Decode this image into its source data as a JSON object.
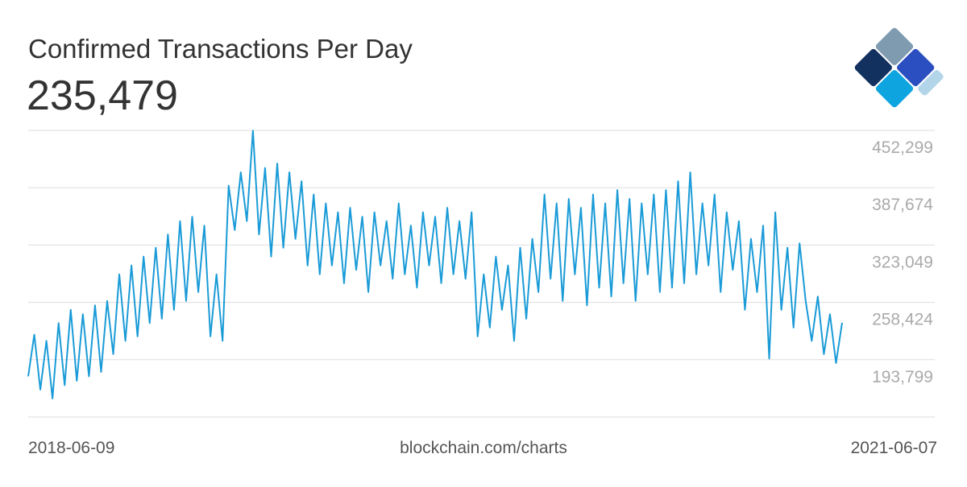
{
  "chart_data": {
    "type": "line",
    "title": "Confirmed Transactions Per Day",
    "subtitle": "235,479",
    "source": "blockchain.com/charts",
    "color": "#1a9bd7",
    "grid": true,
    "categories": [
      "2018-06-09",
      null,
      null,
      null,
      null,
      null,
      null,
      null,
      null,
      null,
      null,
      null,
      null,
      null,
      null,
      null,
      null,
      null,
      null,
      null,
      null,
      null,
      null,
      null,
      null,
      null,
      null,
      null,
      null,
      null,
      null,
      null,
      null,
      null,
      null,
      null,
      null,
      null,
      null,
      null,
      null,
      null,
      null,
      null,
      null,
      null,
      null,
      null,
      null,
      null,
      null,
      null,
      null,
      null,
      null,
      null,
      null,
      null,
      null,
      null,
      null,
      null,
      null,
      null,
      null,
      null,
      null,
      null,
      null,
      null,
      null,
      null,
      null,
      null,
      null,
      null,
      null,
      null,
      null,
      null,
      null,
      null,
      null,
      null,
      null,
      null,
      null,
      null,
      null,
      null,
      null,
      null,
      null,
      null,
      null,
      null,
      null,
      null,
      null,
      null,
      null,
      null,
      null,
      null,
      null,
      null,
      null,
      null,
      null,
      null,
      null,
      null,
      null,
      null,
      null,
      null,
      null,
      null,
      null,
      null,
      null,
      null,
      null,
      null,
      null,
      null,
      null,
      null,
      null,
      null,
      null,
      null,
      null,
      null,
      "2021-06-07"
    ],
    "values": [
      175000,
      222000,
      160000,
      215000,
      150000,
      235000,
      165000,
      250000,
      170000,
      245000,
      175000,
      255000,
      180000,
      260000,
      200000,
      290000,
      215000,
      300000,
      220000,
      310000,
      235000,
      320000,
      240000,
      335000,
      250000,
      350000,
      260000,
      355000,
      270000,
      345000,
      220000,
      290000,
      215000,
      390000,
      340000,
      405000,
      350000,
      452000,
      335000,
      410000,
      310000,
      415000,
      320000,
      405000,
      330000,
      395000,
      300000,
      380000,
      290000,
      370000,
      300000,
      360000,
      280000,
      365000,
      295000,
      355000,
      270000,
      360000,
      300000,
      350000,
      285000,
      370000,
      290000,
      345000,
      275000,
      360000,
      300000,
      355000,
      280000,
      365000,
      290000,
      350000,
      285000,
      360000,
      220000,
      290000,
      230000,
      310000,
      250000,
      300000,
      215000,
      320000,
      240000,
      330000,
      270000,
      380000,
      285000,
      370000,
      260000,
      375000,
      290000,
      365000,
      255000,
      380000,
      275000,
      370000,
      265000,
      385000,
      280000,
      375000,
      260000,
      370000,
      290000,
      380000,
      270000,
      385000,
      275000,
      395000,
      280000,
      405000,
      290000,
      370000,
      300000,
      380000,
      270000,
      360000,
      295000,
      350000,
      250000,
      330000,
      270000,
      345000,
      195000,
      360000,
      250000,
      320000,
      230000,
      325000,
      260000,
      215000,
      265000,
      200000,
      245000,
      190000,
      235479
    ],
    "ylim": [
      129174,
      452299
    ],
    "yticks": [
      {
        "value": 193799,
        "label": "193,799"
      },
      {
        "value": 258424,
        "label": "258,424"
      },
      {
        "value": 323049,
        "label": "323,049"
      },
      {
        "value": 387674,
        "label": "387,674"
      },
      {
        "value": 452299,
        "label": "452,299"
      }
    ]
  }
}
